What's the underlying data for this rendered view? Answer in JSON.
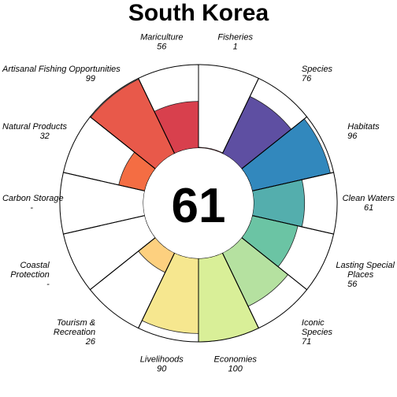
{
  "chart_data": {
    "type": "pie",
    "title": "South Korea",
    "center_score": "61",
    "max_value": 100,
    "goals": [
      {
        "name": "Natural Products",
        "lines": [
          "Natural Products"
        ],
        "value": 32,
        "score_label": "32",
        "color": "#F46D43"
      },
      {
        "name": "Artisanal Fishing Opportunities",
        "lines": [
          "Artisanal Fishing Opportunities"
        ],
        "value": 99,
        "score_label": "99",
        "color": "#E8594A"
      },
      {
        "name": "Mariculture",
        "lines": [
          "Mariculture"
        ],
        "value": 56,
        "score_label": "56",
        "color": "#D8404D"
      },
      {
        "name": "Fisheries",
        "lines": [
          "Fisheries"
        ],
        "value": 1,
        "score_label": "1",
        "color": "#C8344B"
      },
      {
        "name": "Species",
        "lines": [
          "Species"
        ],
        "value": 76,
        "score_label": "76",
        "color": "#5E4FA2"
      },
      {
        "name": "Habitats",
        "lines": [
          "Habitats"
        ],
        "value": 96,
        "score_label": "96",
        "color": "#3288BD"
      },
      {
        "name": "Clean Waters",
        "lines": [
          "Clean Waters"
        ],
        "value": 61,
        "score_label": "61",
        "color": "#54AEAD"
      },
      {
        "name": "Lasting Special Places",
        "lines": [
          "Lasting Special",
          "Places"
        ],
        "value": 56,
        "score_label": "56",
        "color": "#6BC4A4"
      },
      {
        "name": "Iconic Species",
        "lines": [
          "Iconic",
          "Species"
        ],
        "value": 71,
        "score_label": "71",
        "color": "#B5E1A0"
      },
      {
        "name": "Economies",
        "lines": [
          "Economies"
        ],
        "value": 100,
        "score_label": "100",
        "color": "#D9EF98"
      },
      {
        "name": "Livelihoods",
        "lines": [
          "Livelihoods"
        ],
        "value": 90,
        "score_label": "90",
        "color": "#F6E78F"
      },
      {
        "name": "Tourism & Recreation",
        "lines": [
          "Tourism &",
          "Recreation"
        ],
        "value": 26,
        "score_label": "26",
        "color": "#FDD07F"
      },
      {
        "name": "Coastal Protection",
        "lines": [
          "Coastal",
          "Protection"
        ],
        "value": null,
        "score_label": "-",
        "color": "#FDAE61"
      },
      {
        "name": "Carbon Storage",
        "lines": [
          "Carbon Storage"
        ],
        "value": null,
        "score_label": "-",
        "color": "#F88D52"
      }
    ]
  }
}
